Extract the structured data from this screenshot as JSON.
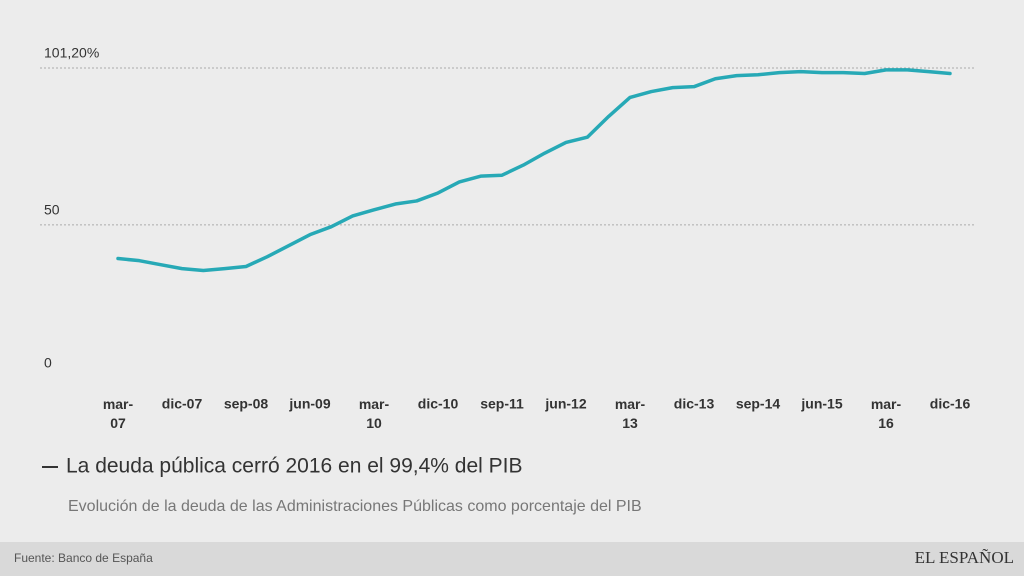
{
  "chart_data": {
    "type": "line",
    "title": "La deuda pública cerró 2016 en el 99,4% del PIB",
    "subtitle": "Evolución de la deuda de las Administraciones Públicas como porcentaje del PIB",
    "source": "Fuente: Banco de España",
    "brand": "EL ESPAÑOL",
    "categories": [
      "mar-07",
      null,
      null,
      "dic-07",
      null,
      null,
      "sep-08",
      null,
      null,
      "jun-09",
      null,
      null,
      "mar-10",
      null,
      null,
      "dic-10",
      null,
      null,
      "sep-11",
      null,
      null,
      "jun-12",
      null,
      null,
      "mar-13",
      null,
      null,
      "dic-13",
      null,
      null,
      "sep-14",
      null,
      null,
      "jun-15",
      null,
      null,
      "mar-16",
      null,
      null,
      "dic-16"
    ],
    "series": [
      {
        "name": "La deuda pública cerró 2016 en el 99,4% del PIB",
        "color": "#27a9b6",
        "values": [
          39.0,
          38.3,
          37.0,
          35.7,
          35.1,
          35.7,
          36.4,
          39.6,
          43.2,
          46.8,
          49.4,
          52.9,
          54.9,
          56.8,
          57.8,
          60.4,
          64.0,
          65.9,
          66.2,
          69.5,
          73.4,
          76.9,
          78.6,
          85.4,
          91.6,
          93.5,
          94.8,
          95.1,
          97.7,
          98.7,
          99.0,
          99.7,
          100.0,
          99.7,
          99.7,
          99.4,
          100.6,
          100.6,
          100.0,
          99.4
        ]
      }
    ],
    "ylim": [
      0,
      101.2
    ],
    "yticks": [
      0,
      50,
      {
        "value": 101.2,
        "label": "101,20%"
      }
    ],
    "grid": true
  }
}
